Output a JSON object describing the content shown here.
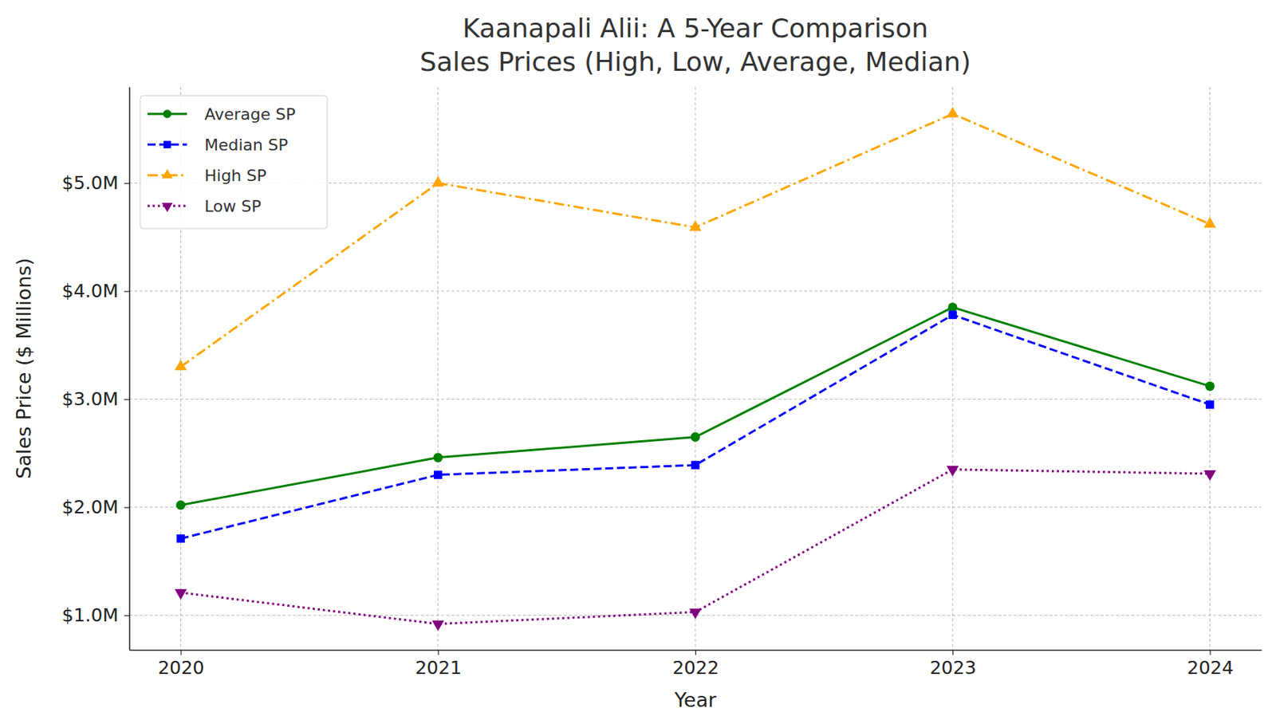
{
  "chart_data": {
    "type": "line",
    "title": "Kaanapali Alii: A 5-Year Comparison\nSales Prices (High, Low, Average, Median)",
    "x_label": "Year",
    "y_label": "Sales Price ($ Millions)",
    "x": [
      2020,
      2021,
      2022,
      2023,
      2024
    ],
    "series": [
      {
        "name": "Average SP",
        "color": "green",
        "marker": "circle",
        "line_style": "solid",
        "values": [
          2.02,
          2.46,
          2.65,
          3.85,
          3.12
        ]
      },
      {
        "name": "Median SP",
        "color": "blue",
        "marker": "square",
        "line_style": "dashed",
        "values": [
          1.71,
          2.3,
          2.39,
          3.78,
          2.95
        ]
      },
      {
        "name": "High SP",
        "color": "orange",
        "marker": "triangle-up",
        "line_style": "dashdot",
        "values": [
          3.3,
          5.0,
          4.59,
          5.64,
          4.62
        ]
      },
      {
        "name": "Low SP",
        "color": "purple",
        "marker": "triangle-down",
        "line_style": "dotted",
        "values": [
          1.21,
          0.92,
          1.03,
          2.35,
          2.31
        ]
      }
    ],
    "xlim": [
      2019.8,
      2024.2
    ],
    "xticks": [
      2020,
      2021,
      2022,
      2023,
      2024
    ],
    "ylim": [
      0.68,
      5.89
    ],
    "yticks": [
      {
        "value": 1,
        "label": "$1.0M"
      },
      {
        "value": 2,
        "label": "$2.0M"
      },
      {
        "value": 3,
        "label": "$3.0M"
      },
      {
        "value": 4,
        "label": "$4.0M"
      },
      {
        "value": 5,
        "label": "$5.0M"
      }
    ],
    "grid": true,
    "legend": "upper left"
  }
}
